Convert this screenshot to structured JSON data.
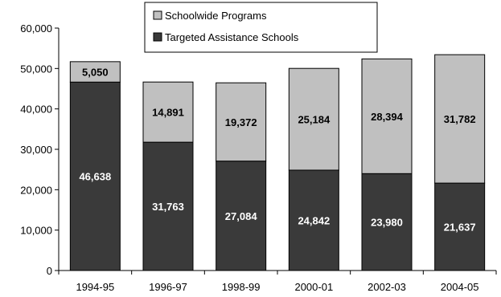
{
  "chart_data": {
    "type": "bar",
    "stacked": true,
    "categories": [
      "1994-95",
      "1996-97",
      "1998-99",
      "2000-01",
      "2002-03",
      "2004-05"
    ],
    "series": [
      {
        "name": "Targeted Assistance Schools",
        "values": [
          46638,
          31763,
          27084,
          24842,
          23980,
          21637
        ],
        "color": "#3a3a3a",
        "label_color": "#ffffff"
      },
      {
        "name": "Schoolwide Programs",
        "values": [
          5050,
          14891,
          19372,
          25184,
          28394,
          31782
        ],
        "color": "#c0c0c0",
        "label_color": "#000000"
      }
    ],
    "data_labels": [
      [
        "46,638",
        "31,763",
        "27,084",
        "24,842",
        "23,980",
        "21,637"
      ],
      [
        "5,050",
        "14,891",
        "19,372",
        "25,184",
        "28,394",
        "31,782"
      ]
    ],
    "y_ticks": [
      0,
      10000,
      20000,
      30000,
      40000,
      50000,
      60000
    ],
    "y_tick_labels": [
      "0",
      "10,000",
      "20,000",
      "30,000",
      "40,000",
      "50,000",
      "60,000"
    ],
    "ylim": [
      0,
      60000
    ],
    "legend": {
      "placement": "top-center",
      "entries": [
        "Schoolwide Programs",
        "Targeted Assistance Schools"
      ]
    },
    "grid": false
  }
}
